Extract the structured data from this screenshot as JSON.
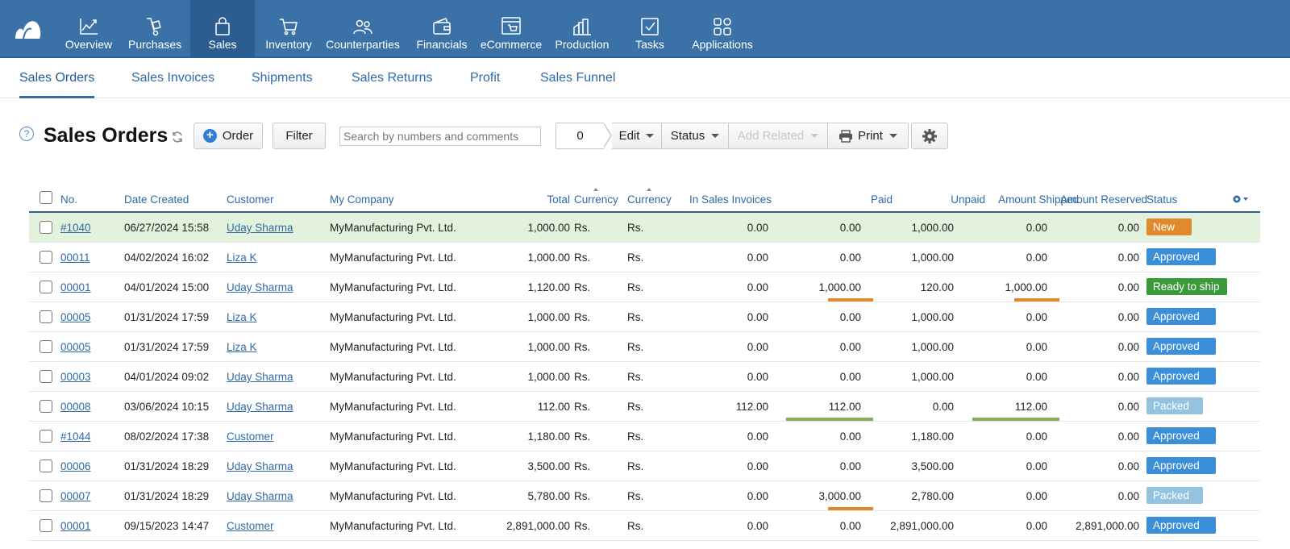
{
  "nav": {
    "items": [
      {
        "label": "Overview",
        "icon": "chart-line-icon"
      },
      {
        "label": "Purchases",
        "icon": "hand-truck-icon"
      },
      {
        "label": "Sales",
        "icon": "shopping-bag-icon"
      },
      {
        "label": "Inventory",
        "icon": "cart-icon"
      },
      {
        "label": "Counterparties",
        "icon": "people-icon"
      },
      {
        "label": "Financials",
        "icon": "wallet-icon"
      },
      {
        "label": "eCommerce",
        "icon": "storefront-icon"
      },
      {
        "label": "Production",
        "icon": "factory-icon"
      },
      {
        "label": "Tasks",
        "icon": "checkbox-icon"
      },
      {
        "label": "Applications",
        "icon": "apps-grid-icon"
      }
    ],
    "active": "Sales",
    "colors": {
      "bar": "#3a72a8",
      "active": "#2c5d91"
    }
  },
  "subnav": {
    "tabs": [
      "Sales Orders",
      "Sales Invoices",
      "Shipments",
      "Sales Returns",
      "Profit",
      "Sales Funnel"
    ],
    "active": "Sales Orders"
  },
  "toolbar": {
    "help": "?",
    "title": "Sales Orders",
    "order_label": "Order",
    "filter_label": "Filter",
    "search_placeholder": "Search by numbers and comments",
    "selected_count": "0",
    "edit_label": "Edit",
    "status_label": "Status",
    "add_related_label": "Add Related",
    "print_label": "Print"
  },
  "table": {
    "headers": {
      "no": "No.",
      "date": "Date Created",
      "customer": "Customer",
      "company": "My Company",
      "total": "Total",
      "currency1": "Currency",
      "currency2": "Currency",
      "invoices": "In Sales Invoices",
      "paid": "Paid",
      "unpaid": "Unpaid",
      "shipped": "Amount Shipped",
      "reserved": "Amount Reserved",
      "status": "Status"
    },
    "status_colors": {
      "New": "#e08a2e",
      "Approved": "#3b8fd9",
      "Ready to ship": "#3a9a3a",
      "Packed": "#93c3e0"
    },
    "rows": [
      {
        "no": "#1040",
        "date": "06/27/2024 15:58",
        "customer": "Uday Sharma",
        "company": "MyManufacturing Pvt. Ltd.",
        "total": "1,000.00",
        "cur1": "Rs.",
        "cur2": "Rs.",
        "invoices": "0.00",
        "paid": "0.00",
        "unpaid": "1,000.00",
        "shipped": "0.00",
        "reserved": "0.00",
        "status": "New",
        "highlight": true
      },
      {
        "no": "00011",
        "date": "04/02/2024 16:02",
        "customer": "Liza K",
        "company": "MyManufacturing Pvt. Ltd.",
        "total": "1,000.00",
        "cur1": "Rs.",
        "cur2": "Rs.",
        "invoices": "0.00",
        "paid": "0.00",
        "unpaid": "1,000.00",
        "shipped": "0.00",
        "reserved": "0.00",
        "status": "Approved"
      },
      {
        "no": "00001",
        "date": "04/01/2024 15:00",
        "customer": "Uday Sharma",
        "company": "MyManufacturing Pvt. Ltd.",
        "total": "1,120.00",
        "cur1": "Rs.",
        "cur2": "Rs.",
        "invoices": "0.00",
        "paid": "1,000.00",
        "unpaid": "120.00",
        "shipped": "1,000.00",
        "reserved": "0.00",
        "status": "Ready to ship",
        "paid_bar": "partial",
        "shipped_bar": "partial"
      },
      {
        "no": "00005",
        "date": "01/31/2024 17:59",
        "customer": "Liza K",
        "company": "MyManufacturing Pvt. Ltd.",
        "total": "1,000.00",
        "cur1": "Rs.",
        "cur2": "Rs.",
        "invoices": "0.00",
        "paid": "0.00",
        "unpaid": "1,000.00",
        "shipped": "0.00",
        "reserved": "0.00",
        "status": "Approved"
      },
      {
        "no": "00005",
        "date": "01/31/2024 17:59",
        "customer": "Liza K",
        "company": "MyManufacturing Pvt. Ltd.",
        "total": "1,000.00",
        "cur1": "Rs.",
        "cur2": "Rs.",
        "invoices": "0.00",
        "paid": "0.00",
        "unpaid": "1,000.00",
        "shipped": "0.00",
        "reserved": "0.00",
        "status": "Approved"
      },
      {
        "no": "00003",
        "date": "04/01/2024 09:02",
        "customer": "Uday Sharma",
        "company": "MyManufacturing Pvt. Ltd.",
        "total": "1,000.00",
        "cur1": "Rs.",
        "cur2": "Rs.",
        "invoices": "0.00",
        "paid": "0.00",
        "unpaid": "1,000.00",
        "shipped": "0.00",
        "reserved": "0.00",
        "status": "Approved"
      },
      {
        "no": "00008",
        "date": "03/06/2024 10:15",
        "customer": "Uday Sharma",
        "company": "MyManufacturing Pvt. Ltd.",
        "total": "112.00",
        "cur1": "Rs.",
        "cur2": "Rs.",
        "invoices": "112.00",
        "paid": "112.00",
        "unpaid": "0.00",
        "shipped": "112.00",
        "reserved": "0.00",
        "status": "Packed",
        "paid_bar": "full",
        "shipped_bar": "full"
      },
      {
        "no": "#1044",
        "date": "08/02/2024 17:38",
        "customer": "Customer",
        "company": "MyManufacturing Pvt. Ltd.",
        "total": "1,180.00",
        "cur1": "Rs.",
        "cur2": "Rs.",
        "invoices": "0.00",
        "paid": "0.00",
        "unpaid": "1,180.00",
        "shipped": "0.00",
        "reserved": "0.00",
        "status": "Approved"
      },
      {
        "no": "00006",
        "date": "01/31/2024 18:29",
        "customer": "Uday Sharma",
        "company": "MyManufacturing Pvt. Ltd.",
        "total": "3,500.00",
        "cur1": "Rs.",
        "cur2": "Rs.",
        "invoices": "0.00",
        "paid": "0.00",
        "unpaid": "3,500.00",
        "shipped": "0.00",
        "reserved": "0.00",
        "status": "Approved"
      },
      {
        "no": "00007",
        "date": "01/31/2024 18:29",
        "customer": "Uday Sharma",
        "company": "MyManufacturing Pvt. Ltd.",
        "total": "5,780.00",
        "cur1": "Rs.",
        "cur2": "Rs.",
        "invoices": "0.00",
        "paid": "3,000.00",
        "unpaid": "2,780.00",
        "shipped": "0.00",
        "reserved": "0.00",
        "status": "Packed",
        "paid_bar": "partial"
      },
      {
        "no": "00001",
        "date": "09/15/2023 14:47",
        "customer": "Customer",
        "company": "MyManufacturing Pvt. Ltd.",
        "total": "2,891,000.00",
        "cur1": "Rs.",
        "cur2": "Rs.",
        "invoices": "0.00",
        "paid": "0.00",
        "unpaid": "2,891,000.00",
        "shipped": "0.00",
        "reserved": "2,891,000.00",
        "status": "Approved"
      }
    ]
  }
}
